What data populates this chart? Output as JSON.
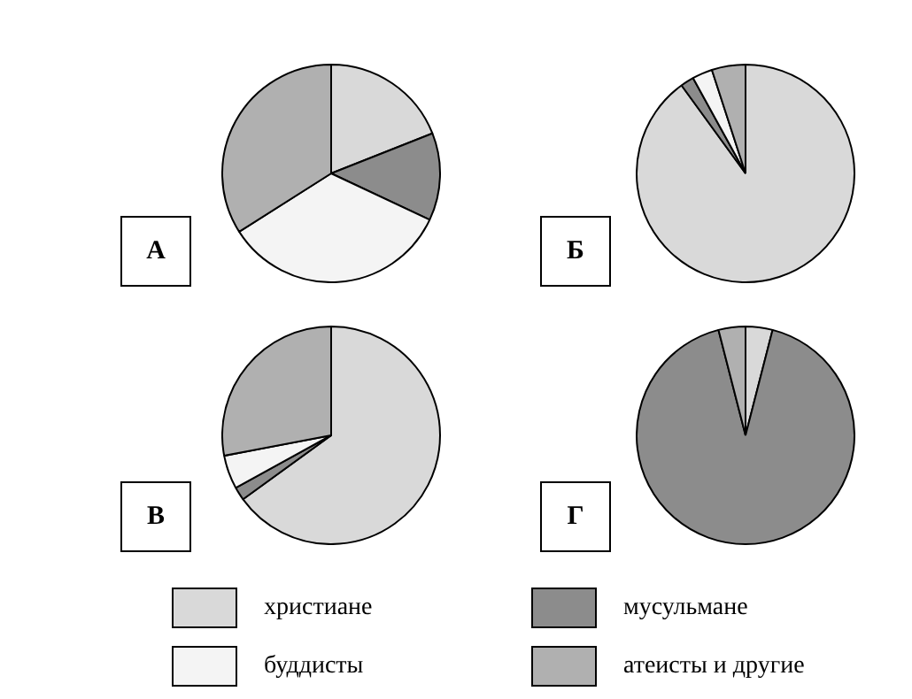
{
  "chart_data": [
    {
      "type": "pie",
      "title": "А",
      "categories": [
        "христиане",
        "мусульмане",
        "буддисты",
        "атеисты и другие"
      ],
      "values": [
        19,
        13,
        34,
        34
      ],
      "colors": [
        "#d9d9d9",
        "#8c8c8c",
        "#f4f4f4",
        "#b0b0b0"
      ],
      "legend": "bottom"
    },
    {
      "type": "pie",
      "title": "Б",
      "categories": [
        null,
        null,
        null,
        null
      ],
      "values": [
        90,
        2,
        3,
        5
      ],
      "colors": [
        "#d9d9d9",
        "#8c8c8c",
        "#f4f4f4",
        "#b0b0b0"
      ]
    },
    {
      "type": "pie",
      "title": "В",
      "categories": [
        null,
        null,
        null,
        null
      ],
      "values": [
        65,
        2,
        5,
        28
      ],
      "colors": [
        "#d9d9d9",
        "#8c8c8c",
        "#f4f4f4",
        "#b0b0b0"
      ]
    },
    {
      "type": "pie",
      "title": "Г",
      "categories": [
        null,
        null,
        null,
        null
      ],
      "values": [
        4,
        92,
        0,
        4
      ],
      "colors": [
        "#d9d9d9",
        "#8c8c8c",
        "#f4f4f4",
        "#b0b0b0"
      ]
    }
  ]
}
